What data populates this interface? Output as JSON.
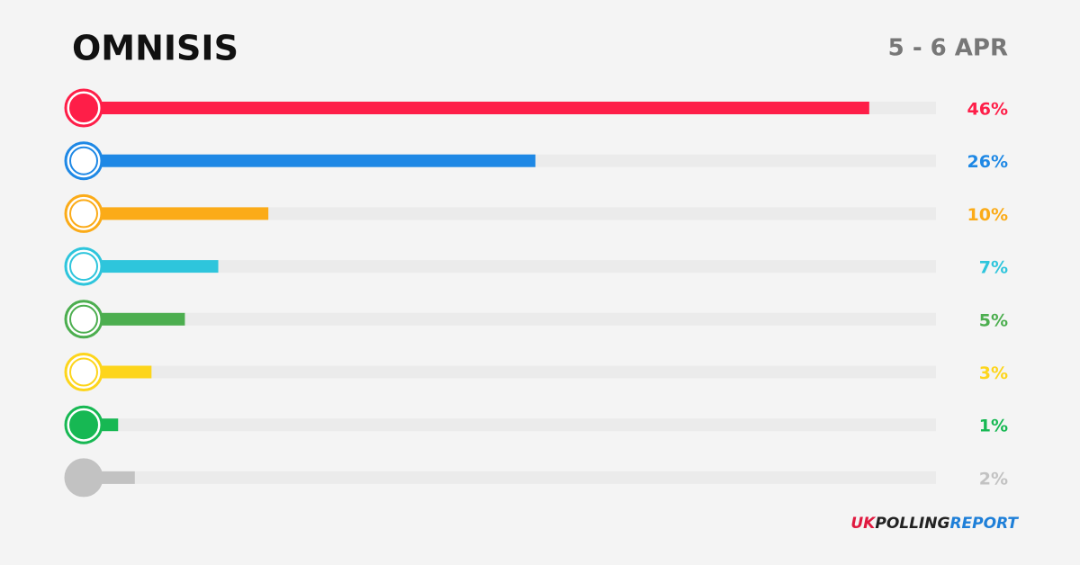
{
  "chart_data": {
    "type": "hbar",
    "title": "OMNISIS",
    "subtitle": "5 - 6 APR",
    "values": [
      46,
      26,
      10,
      7,
      5,
      3,
      1,
      2
    ],
    "value_labels": [
      "46%",
      "26%",
      "10%",
      "7%",
      "5%",
      "3%",
      "1%",
      "2%"
    ],
    "colors": [
      "#fe1e48",
      "#1e88e5",
      "#fbab18",
      "#2ec5dc",
      "#4cae4f",
      "#fdd51b",
      "#17b853",
      "#c2c2c2"
    ],
    "xlim": [
      0,
      50
    ],
    "source": [
      "UK",
      "POLLING",
      "REPORT"
    ]
  }
}
